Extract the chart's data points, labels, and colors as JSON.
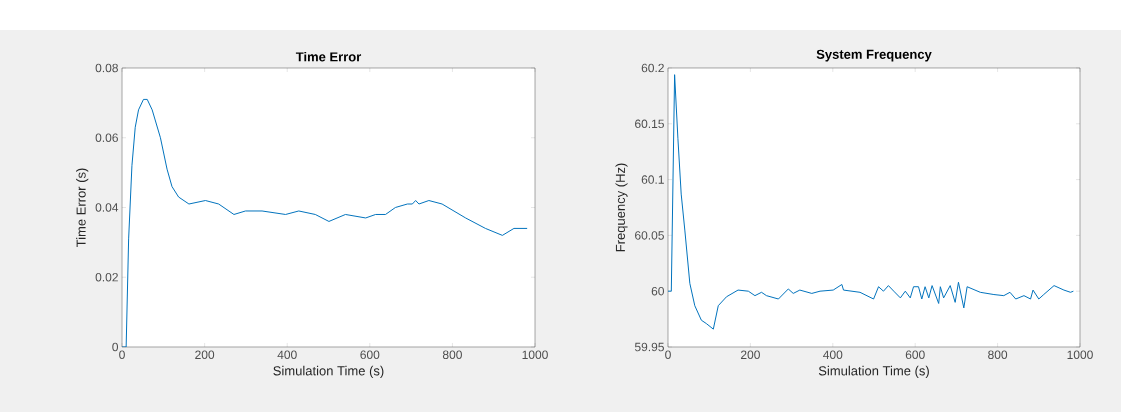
{
  "chart_data": [
    {
      "type": "line",
      "title": "Time Error",
      "xlabel": "Simulation Time (s)",
      "ylabel": "Time Error (s)",
      "color": "#0072bd",
      "grid": false,
      "x": [
        0,
        10,
        16,
        24,
        32,
        40,
        52,
        61,
        73,
        93,
        109,
        121,
        137,
        162,
        202,
        234,
        271,
        299,
        339,
        396,
        428,
        468,
        501,
        541,
        590,
        614,
        638,
        662,
        691,
        703,
        711,
        719,
        743,
        775,
        832,
        880,
        921,
        949,
        981
      ],
      "values": [
        0,
        0,
        0.031,
        0.052,
        0.063,
        0.068,
        0.071,
        0.071,
        0.068,
        0.06,
        0.051,
        0.046,
        0.043,
        0.041,
        0.042,
        0.041,
        0.038,
        0.039,
        0.039,
        0.038,
        0.039,
        0.038,
        0.036,
        0.038,
        0.037,
        0.038,
        0.038,
        0.04,
        0.041,
        0.041,
        0.042,
        0.041,
        0.042,
        0.041,
        0.037,
        0.034,
        0.032,
        0.034,
        0.034
      ],
      "xlim": [
        0,
        1000
      ],
      "xticks": [
        0,
        200,
        400,
        600,
        800,
        1000
      ],
      "ylim": [
        0,
        0.08
      ],
      "yticks": [
        0,
        0.02,
        0.04,
        0.06,
        0.08
      ]
    },
    {
      "type": "line",
      "title": "System Frequency",
      "xlabel": "Simulation Time (s)",
      "ylabel": "Frequency (Hz)",
      "color": "#0072bd",
      "grid": false,
      "x": [
        0,
        8,
        16,
        24,
        32,
        41,
        53,
        65,
        81,
        93,
        110,
        122,
        142,
        170,
        195,
        211,
        227,
        239,
        268,
        292,
        304,
        320,
        349,
        369,
        401,
        422,
        426,
        466,
        499,
        511,
        523,
        535,
        548,
        564,
        576,
        588,
        596,
        608,
        616,
        624,
        633,
        641,
        657,
        661,
        669,
        685,
        697,
        705,
        718,
        726,
        758,
        791,
        815,
        830,
        844,
        864,
        880,
        886,
        900,
        912,
        937,
        961,
        977,
        984
      ],
      "values": [
        60,
        60,
        60.194,
        60.137,
        60.087,
        60.054,
        60.007,
        59.987,
        59.974,
        59.971,
        59.966,
        59.987,
        59.995,
        60.001,
        60,
        59.996,
        59.999,
        59.996,
        59.993,
        60.002,
        59.998,
        60.001,
        59.998,
        60,
        60.001,
        60.006,
        60.001,
        59.999,
        59.993,
        60.004,
        60,
        60.005,
        60,
        59.994,
        60,
        59.994,
        60.004,
        60.004,
        59.993,
        60.004,
        59.994,
        60.005,
        59.989,
        60.004,
        59.994,
        60.005,
        59.99,
        60.008,
        59.985,
        60.004,
        59.999,
        59.997,
        59.996,
        59.999,
        59.993,
        59.996,
        59.993,
        60.001,
        59.993,
        59.997,
        60.005,
        60.001,
        59.999,
        60
      ],
      "xlim": [
        0,
        1000
      ],
      "xticks": [
        0,
        200,
        400,
        600,
        800,
        1000
      ],
      "ylim": [
        59.95,
        60.2
      ],
      "yticks": [
        59.95,
        60,
        60.05,
        60.1,
        60.15,
        60.2
      ]
    }
  ]
}
